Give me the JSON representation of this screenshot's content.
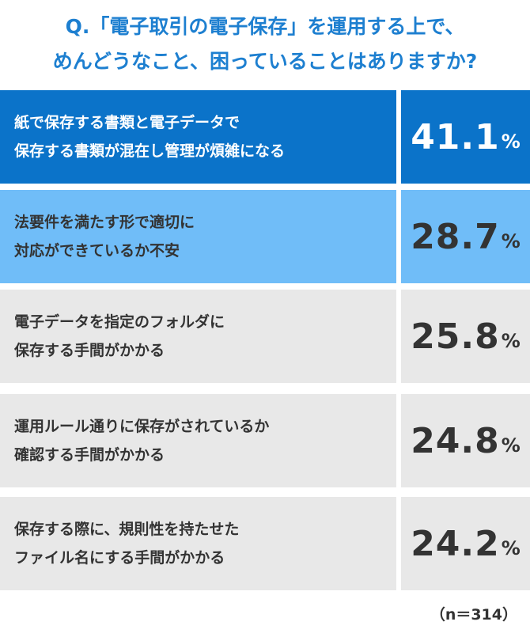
{
  "title_lines": [
    "Q.「電子取引の電子保存」を運用する上で、",
    "めんどうなこと、困っていることはありますか?"
  ],
  "unit": "%",
  "footnote": "（n＝314）",
  "colors": {
    "title": "#1d7fd0",
    "rank1": "#0b73c9",
    "rank2": "#70bdf8",
    "others": "#e8e8e8"
  },
  "chart_data": {
    "type": "table",
    "title": "Q.「電子取引の電子保存」を運用する上で、めんどうなこと、困っていることはありますか?",
    "n": 314,
    "rows": [
      {
        "lines": [
          "紙で保存する書類と電子データで",
          "保存する書類が混在し管理が煩雑になる"
        ],
        "value": "41.1"
      },
      {
        "lines": [
          "法要件を満たす形で適切に",
          "対応ができているか不安"
        ],
        "value": "28.7"
      },
      {
        "lines": [
          "電子データを指定のフォルダに",
          "保存する手間がかかる"
        ],
        "value": "25.8"
      },
      {
        "lines": [
          "運用ルール通りに保存がされているか",
          "確認する手間がかかる"
        ],
        "value": "24.8"
      },
      {
        "lines": [
          "保存する際に、規則性を持たせた",
          "ファイル名にする手間がかかる"
        ],
        "value": "24.2"
      }
    ]
  }
}
